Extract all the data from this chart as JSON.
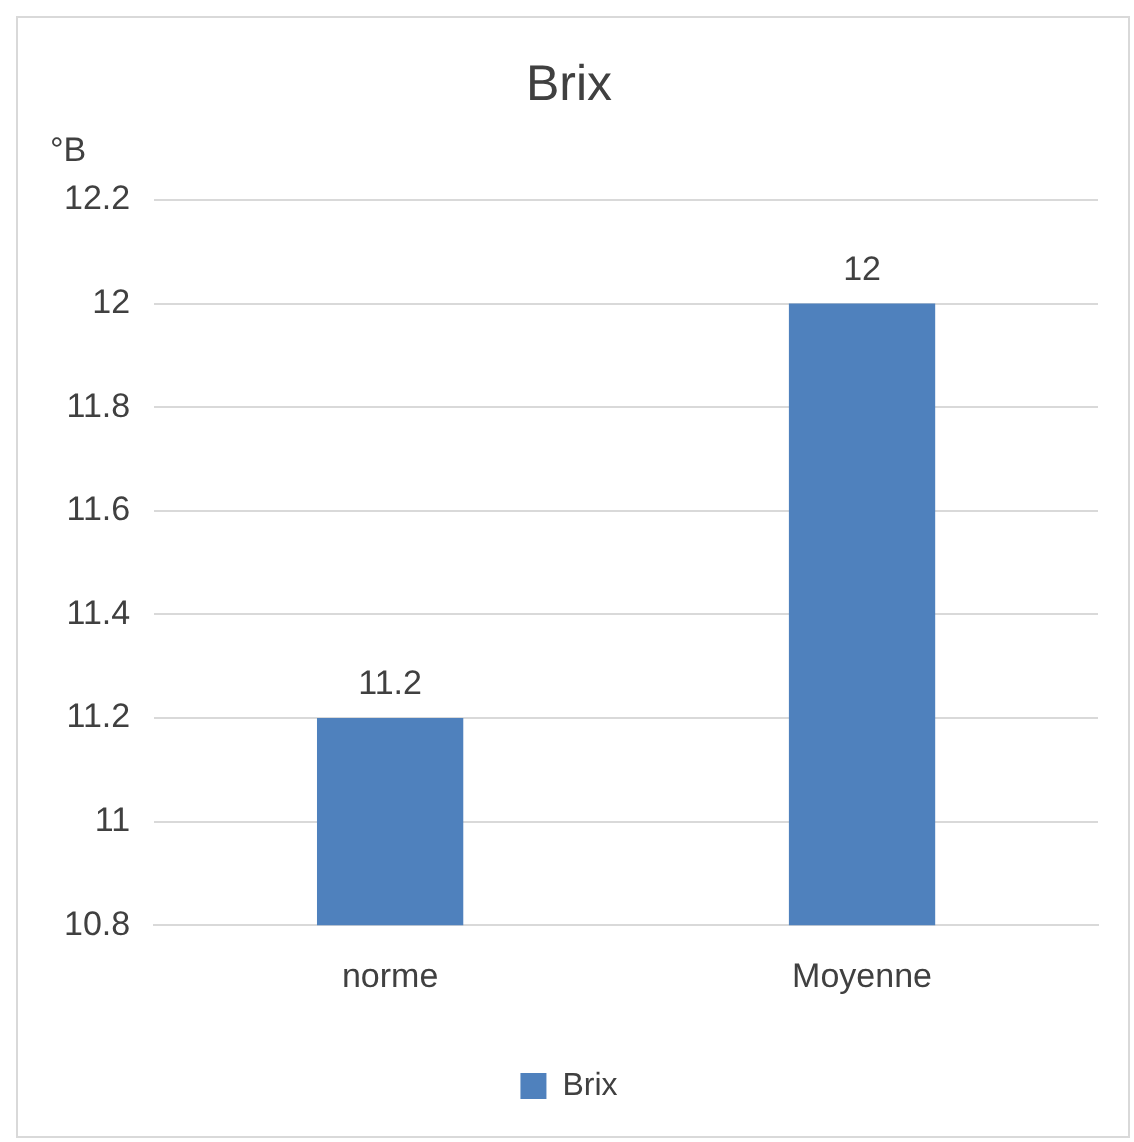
{
  "chart_data": {
    "type": "bar",
    "title": "Brix",
    "ylabel": "°B",
    "categories": [
      "norme",
      "Moyenne"
    ],
    "series": [
      {
        "name": "Brix",
        "color": "#4f81bd",
        "values": [
          11.2,
          12
        ]
      }
    ],
    "ylim": [
      10.8,
      12.2
    ],
    "yticks": [
      10.8,
      11,
      11.2,
      11.4,
      11.6,
      11.8,
      12,
      12.2
    ],
    "grid": "y",
    "legend": "bottom",
    "data_labels": true
  }
}
